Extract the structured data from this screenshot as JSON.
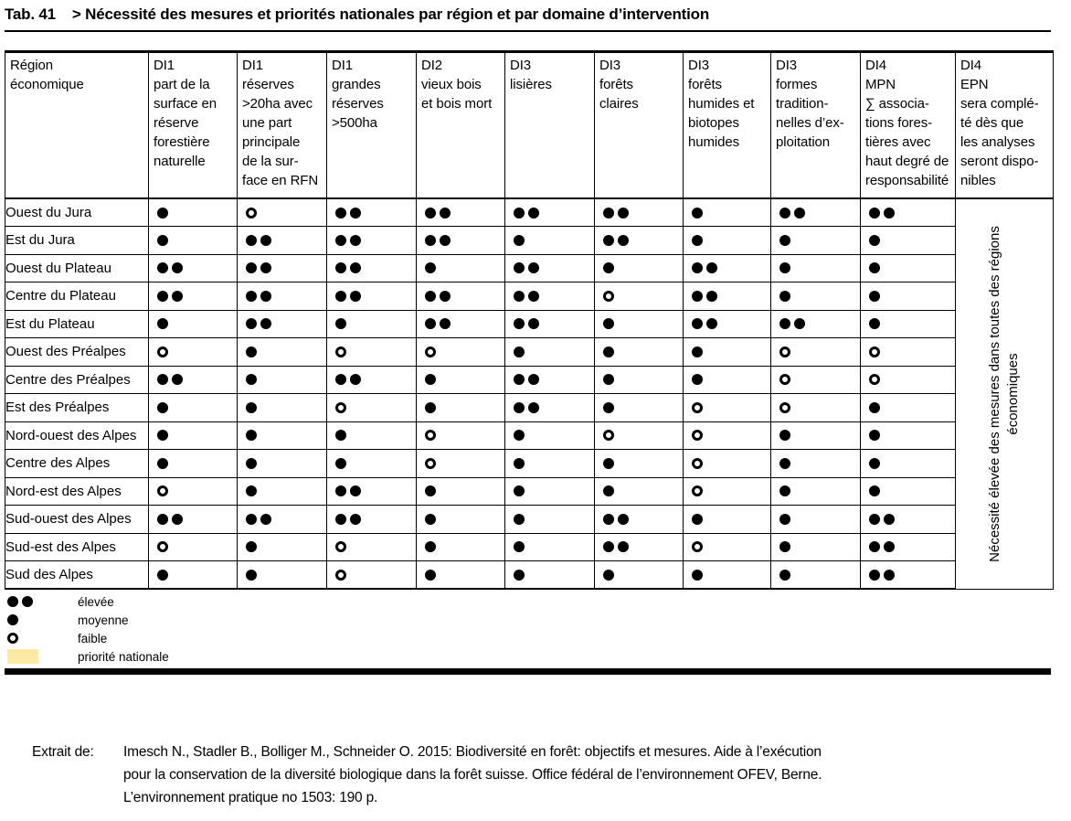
{
  "title": {
    "tab": "Tab. 41",
    "text": "> Nécessité des mesures et priorités nationales par région et par domaine d’intervention"
  },
  "table": {
    "corner": [
      "Région",
      "économique"
    ],
    "columns": [
      {
        "code": "DI1",
        "lines": [
          "part de la",
          "surface en",
          "réserve",
          "forestière",
          "naturelle"
        ]
      },
      {
        "code": "DI1",
        "lines": [
          "réserves",
          ">20ha avec",
          "une part",
          "principale",
          "de la sur-",
          "face en RFN"
        ]
      },
      {
        "code": "DI1",
        "lines": [
          "grandes",
          "réserves",
          ">500ha"
        ]
      },
      {
        "code": "DI2",
        "lines": [
          "vieux bois",
          "et bois mort"
        ]
      },
      {
        "code": "DI3",
        "lines": [
          "lisières"
        ]
      },
      {
        "code": "DI3",
        "lines": [
          "forêts",
          "claires"
        ]
      },
      {
        "code": "DI3",
        "lines": [
          "forêts",
          "humides et",
          "biotopes",
          "humides"
        ]
      },
      {
        "code": "DI3",
        "lines": [
          "formes",
          "tradition-",
          "nelles d’ex-",
          "ploitation"
        ]
      },
      {
        "code": "DI4",
        "lines": [
          "MPN",
          "∑ associa-",
          "tions fores-",
          "tières avec",
          "haut degré de",
          "responsabilité"
        ]
      },
      {
        "code": "DI4",
        "lines": [
          "EPN",
          "sera complé-",
          "té dès que",
          "les analyses",
          "seront dispo-",
          "nibles"
        ]
      }
    ],
    "symbol_meaning": {
      "2": "élevée",
      "1": "moyenne",
      "0": "faible"
    },
    "rows": [
      {
        "region": "Ouest du Jura",
        "values": [
          1,
          0,
          2,
          2,
          2,
          2,
          1,
          2,
          2
        ],
        "national_priority": [
          false,
          false,
          true,
          true,
          false,
          false,
          false,
          true,
          true
        ]
      },
      {
        "region": "Est du Jura",
        "values": [
          1,
          2,
          2,
          2,
          1,
          2,
          1,
          1,
          1
        ],
        "national_priority": [
          false,
          true,
          true,
          true,
          false,
          true,
          false,
          false,
          false
        ]
      },
      {
        "region": "Ouest du Plateau",
        "values": [
          2,
          2,
          2,
          1,
          2,
          1,
          2,
          1,
          1
        ],
        "national_priority": [
          true,
          false,
          true,
          true,
          true,
          false,
          true,
          false,
          false
        ]
      },
      {
        "region": "Centre du Plateau",
        "values": [
          2,
          2,
          2,
          2,
          2,
          0,
          2,
          1,
          1
        ],
        "national_priority": [
          true,
          false,
          true,
          true,
          true,
          false,
          true,
          false,
          false
        ]
      },
      {
        "region": "Est du Plateau",
        "values": [
          1,
          2,
          1,
          2,
          2,
          1,
          2,
          2,
          1
        ],
        "national_priority": [
          false,
          false,
          false,
          true,
          true,
          true,
          true,
          false,
          false
        ]
      },
      {
        "region": "Ouest des Préalpes",
        "values": [
          0,
          1,
          0,
          0,
          1,
          1,
          1,
          0,
          0
        ],
        "national_priority": [
          false,
          true,
          false,
          false,
          false,
          false,
          true,
          false,
          false
        ]
      },
      {
        "region": "Centre des Préalpes",
        "values": [
          2,
          1,
          2,
          1,
          2,
          1,
          1,
          0,
          0
        ],
        "national_priority": [
          true,
          true,
          true,
          false,
          true,
          false,
          false,
          false,
          false
        ]
      },
      {
        "region": "Est des Préalpes",
        "values": [
          1,
          1,
          0,
          1,
          2,
          1,
          0,
          0,
          1
        ],
        "national_priority": [
          false,
          false,
          false,
          false,
          true,
          true,
          false,
          false,
          false
        ]
      },
      {
        "region": "Nord-ouest des Alpes",
        "values": [
          1,
          1,
          1,
          0,
          1,
          0,
          0,
          1,
          1
        ],
        "national_priority": [
          false,
          true,
          false,
          false,
          false,
          false,
          false,
          false,
          true
        ]
      },
      {
        "region": "Centre des Alpes",
        "values": [
          1,
          1,
          1,
          0,
          1,
          1,
          0,
          1,
          1
        ],
        "national_priority": [
          false,
          false,
          false,
          false,
          false,
          true,
          false,
          false,
          true
        ]
      },
      {
        "region": "Nord-est des Alpes",
        "values": [
          0,
          1,
          2,
          1,
          1,
          1,
          0,
          1,
          1
        ],
        "national_priority": [
          false,
          false,
          true,
          false,
          true,
          false,
          false,
          false,
          true
        ]
      },
      {
        "region": "Sud-ouest des Alpes",
        "values": [
          2,
          2,
          2,
          1,
          1,
          2,
          1,
          1,
          2
        ],
        "national_priority": [
          true,
          true,
          true,
          false,
          false,
          false,
          false,
          true,
          true
        ]
      },
      {
        "region": "Sud-est des Alpes",
        "values": [
          0,
          1,
          0,
          1,
          1,
          2,
          0,
          1,
          2
        ],
        "national_priority": [
          false,
          true,
          false,
          false,
          false,
          false,
          false,
          true,
          true
        ]
      },
      {
        "region": "Sud des Alpes",
        "values": [
          1,
          1,
          0,
          1,
          1,
          1,
          1,
          1,
          2
        ],
        "national_priority": [
          false,
          false,
          false,
          false,
          false,
          false,
          false,
          true,
          true
        ]
      }
    ],
    "epn_note": "Nécessité élevée des mesures dans toutes des régions économiques"
  },
  "legend": {
    "items": [
      {
        "symbol": "double-dot",
        "label": "élevée"
      },
      {
        "symbol": "single-dot",
        "label": "moyenne"
      },
      {
        "symbol": "open-dot",
        "label": "faible"
      },
      {
        "symbol": "yellow-swatch",
        "label": "priorité nationale"
      }
    ]
  },
  "colors": {
    "national_priority": "#FBE9A4"
  },
  "footer": {
    "label": "Extrait de:",
    "lines": [
      "Imesch N., Stadler B., Bolliger M., Schneider O. 2015: Biodiversité en forêt: objectifs et mesures. Aide à l’exécution",
      "pour la conservation de la diversité biologique dans la forêt suisse. Office fédéral de l’environnement OFEV, Berne.",
      "L’environnement pratique no 1503: 190 p."
    ]
  }
}
